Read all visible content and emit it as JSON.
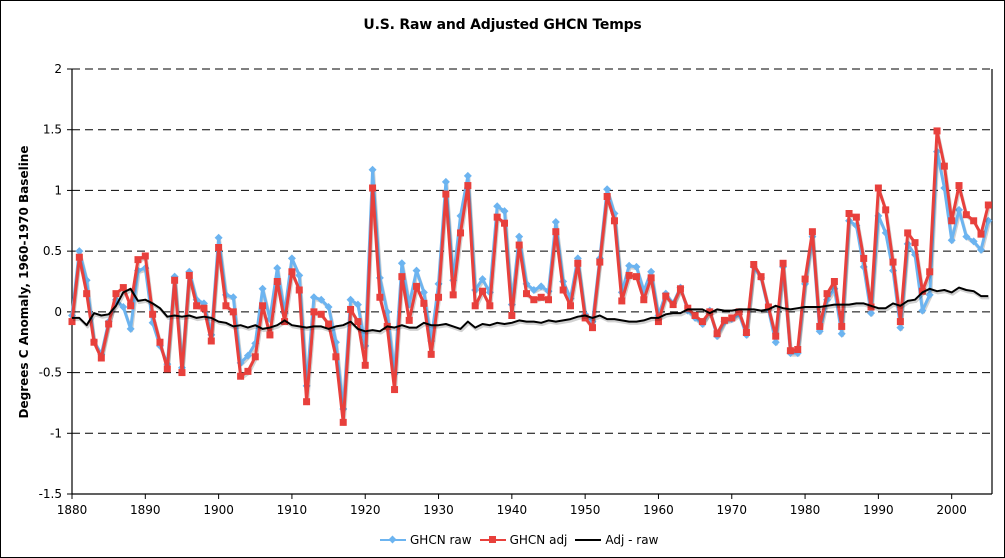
{
  "chart_data": {
    "type": "line",
    "title": "U.S. Raw and Adjusted GHCN Temps",
    "xlabel": "",
    "ylabel": "Degrees C Anomaly, 1960-1970 Baseline",
    "xlim": [
      1880,
      2005.5
    ],
    "ylim": [
      -1.5,
      2
    ],
    "x_ticks": [
      "1880",
      "1890",
      "1900",
      "1910",
      "1920",
      "1930",
      "1940",
      "1950",
      "1960",
      "1970",
      "1980",
      "1990",
      "2000"
    ],
    "y_ticks": [
      "2",
      "1.5",
      "1",
      "0.5",
      "0",
      "-0.5",
      "-1",
      "-1.5"
    ],
    "grid": "horizontal dashed",
    "legend_position": "bottom",
    "x_start": 1880,
    "series": [
      {
        "name": "GHCN raw",
        "color": "#6cb4f0",
        "marker": "diamond",
        "values": [
          -0.03,
          0.5,
          0.26,
          -0.24,
          -0.35,
          -0.08,
          0.1,
          0.04,
          -0.14,
          0.34,
          0.36,
          -0.09,
          -0.28,
          -0.43,
          0.29,
          -0.46,
          0.33,
          0.1,
          0.07,
          -0.19,
          0.61,
          0.14,
          0.12,
          -0.42,
          -0.36,
          -0.26,
          0.19,
          -0.06,
          0.36,
          -0.01,
          0.44,
          0.3,
          -0.61,
          0.12,
          0.1,
          0.04,
          -0.25,
          -0.8,
          0.1,
          0.06,
          -0.28,
          1.17,
          0.28,
          0.0,
          -0.51,
          0.4,
          0.06,
          0.34,
          0.16,
          -0.24,
          0.23,
          1.07,
          0.26,
          0.79,
          1.12,
          0.18,
          0.27,
          0.16,
          0.87,
          0.83,
          0.06,
          0.62,
          0.23,
          0.18,
          0.21,
          0.17,
          0.74,
          0.25,
          0.11,
          0.44,
          -0.02,
          -0.08,
          0.44,
          1.01,
          0.81,
          0.16,
          0.38,
          0.37,
          0.17,
          0.33,
          -0.03,
          0.15,
          0.07,
          0.2,
          0.01,
          -0.05,
          -0.1,
          0.01,
          -0.2,
          -0.08,
          -0.06,
          -0.02,
          -0.19,
          0.37,
          0.28,
          0.02,
          -0.25,
          0.37,
          -0.34,
          -0.34,
          0.23,
          0.62,
          -0.16,
          0.1,
          0.19,
          -0.18,
          0.75,
          0.71,
          0.37,
          -0.01,
          0.79,
          0.65,
          0.34,
          -0.13,
          0.56,
          0.47,
          0.01,
          0.14,
          1.32,
          1.02,
          0.59,
          0.84,
          0.62,
          0.58,
          0.51,
          0.75
        ]
      },
      {
        "name": "GHCN adj",
        "color": "#e8403c",
        "marker": "square",
        "values": [
          -0.08,
          0.45,
          0.15,
          -0.25,
          -0.38,
          -0.1,
          0.15,
          0.2,
          0.05,
          0.43,
          0.46,
          -0.02,
          -0.25,
          -0.47,
          0.26,
          -0.5,
          0.3,
          0.05,
          0.03,
          -0.24,
          0.53,
          0.05,
          0.0,
          -0.53,
          -0.49,
          -0.37,
          0.05,
          -0.19,
          0.25,
          -0.08,
          0.33,
          0.18,
          -0.74,
          0.0,
          -0.02,
          -0.1,
          -0.37,
          -0.91,
          0.02,
          -0.08,
          -0.44,
          1.02,
          0.12,
          -0.12,
          -0.64,
          0.29,
          -0.07,
          0.21,
          0.07,
          -0.35,
          0.12,
          0.97,
          0.14,
          0.65,
          1.04,
          0.05,
          0.17,
          0.05,
          0.78,
          0.73,
          -0.03,
          0.55,
          0.15,
          0.1,
          0.12,
          0.1,
          0.66,
          0.18,
          0.05,
          0.4,
          -0.05,
          -0.13,
          0.41,
          0.95,
          0.75,
          0.09,
          0.3,
          0.29,
          0.1,
          0.28,
          -0.08,
          0.13,
          0.06,
          0.19,
          0.03,
          -0.03,
          -0.08,
          0.0,
          -0.18,
          -0.07,
          -0.05,
          0.0,
          -0.17,
          0.39,
          0.29,
          0.04,
          -0.2,
          0.4,
          -0.32,
          -0.31,
          0.27,
          0.66,
          -0.12,
          0.15,
          0.25,
          -0.12,
          0.81,
          0.78,
          0.44,
          0.04,
          1.02,
          0.84,
          0.41,
          -0.08,
          0.65,
          0.57,
          0.17,
          0.33,
          1.49,
          1.2,
          0.75,
          1.04,
          0.8,
          0.75,
          0.64,
          0.88
        ]
      },
      {
        "name": "Adj - raw",
        "color": "#000000",
        "marker": "none",
        "values": [
          -0.05,
          -0.05,
          -0.11,
          -0.01,
          -0.03,
          -0.02,
          0.05,
          0.16,
          0.19,
          0.09,
          0.1,
          0.07,
          0.03,
          -0.04,
          -0.03,
          -0.04,
          -0.03,
          -0.05,
          -0.04,
          -0.05,
          -0.08,
          -0.09,
          -0.12,
          -0.11,
          -0.13,
          -0.11,
          -0.14,
          -0.13,
          -0.11,
          -0.07,
          -0.11,
          -0.12,
          -0.13,
          -0.12,
          -0.12,
          -0.14,
          -0.12,
          -0.11,
          -0.08,
          -0.14,
          -0.16,
          -0.15,
          -0.16,
          -0.12,
          -0.13,
          -0.11,
          -0.13,
          -0.13,
          -0.09,
          -0.11,
          -0.11,
          -0.1,
          -0.12,
          -0.14,
          -0.08,
          -0.13,
          -0.1,
          -0.11,
          -0.09,
          -0.1,
          -0.09,
          -0.07,
          -0.08,
          -0.08,
          -0.09,
          -0.07,
          -0.08,
          -0.07,
          -0.06,
          -0.04,
          -0.03,
          -0.05,
          -0.03,
          -0.06,
          -0.06,
          -0.07,
          -0.08,
          -0.08,
          -0.07,
          -0.05,
          -0.05,
          -0.02,
          -0.01,
          -0.01,
          0.02,
          0.02,
          0.02,
          -0.01,
          0.02,
          0.01,
          0.01,
          0.02,
          0.02,
          0.02,
          0.01,
          0.02,
          0.05,
          0.03,
          0.02,
          0.03,
          0.04,
          0.04,
          0.04,
          0.05,
          0.06,
          0.06,
          0.06,
          0.07,
          0.07,
          0.05,
          0.03,
          0.03,
          0.07,
          0.05,
          0.09,
          0.1,
          0.16,
          0.19,
          0.17,
          0.18,
          0.16,
          0.2,
          0.18,
          0.17,
          0.13,
          0.13
        ]
      }
    ]
  }
}
